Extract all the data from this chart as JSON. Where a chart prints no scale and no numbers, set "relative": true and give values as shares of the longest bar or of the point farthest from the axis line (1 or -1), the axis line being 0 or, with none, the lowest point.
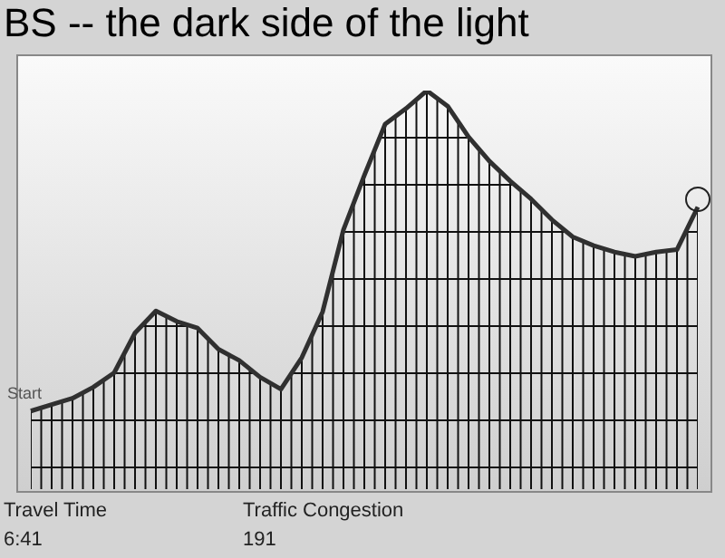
{
  "chart_data": {
    "type": "line",
    "title": "BS -- the dark side of the light",
    "relative": true,
    "grid": true,
    "legend": false,
    "marker": "none",
    "line_style": "solid",
    "categories": [
      null,
      null,
      null,
      null,
      null,
      null,
      null,
      null,
      null,
      null,
      null,
      null,
      null,
      null,
      null,
      null,
      null,
      null,
      null,
      null,
      null,
      null,
      null,
      null,
      null,
      null,
      null,
      null,
      null,
      null,
      null,
      null,
      null
    ],
    "series": [
      {
        "color": "#303030",
        "values": [
          0.196,
          0.212,
          0.228,
          0.256,
          0.292,
          0.392,
          0.447,
          0.421,
          0.404,
          0.351,
          0.323,
          0.281,
          0.251,
          0.33,
          0.445,
          0.651,
          0.787,
          0.916,
          0.955,
          1,
          0.961,
          0.884,
          0.823,
          0.773,
          0.728,
          0.676,
          0.633,
          0.611,
          0.595,
          0.584,
          0.595,
          0.601,
          0.708
        ]
      }
    ],
    "annotations": [
      "Start",
      "Travel Time",
      "6:41",
      "Traffic Congestion",
      "191"
    ]
  }
}
